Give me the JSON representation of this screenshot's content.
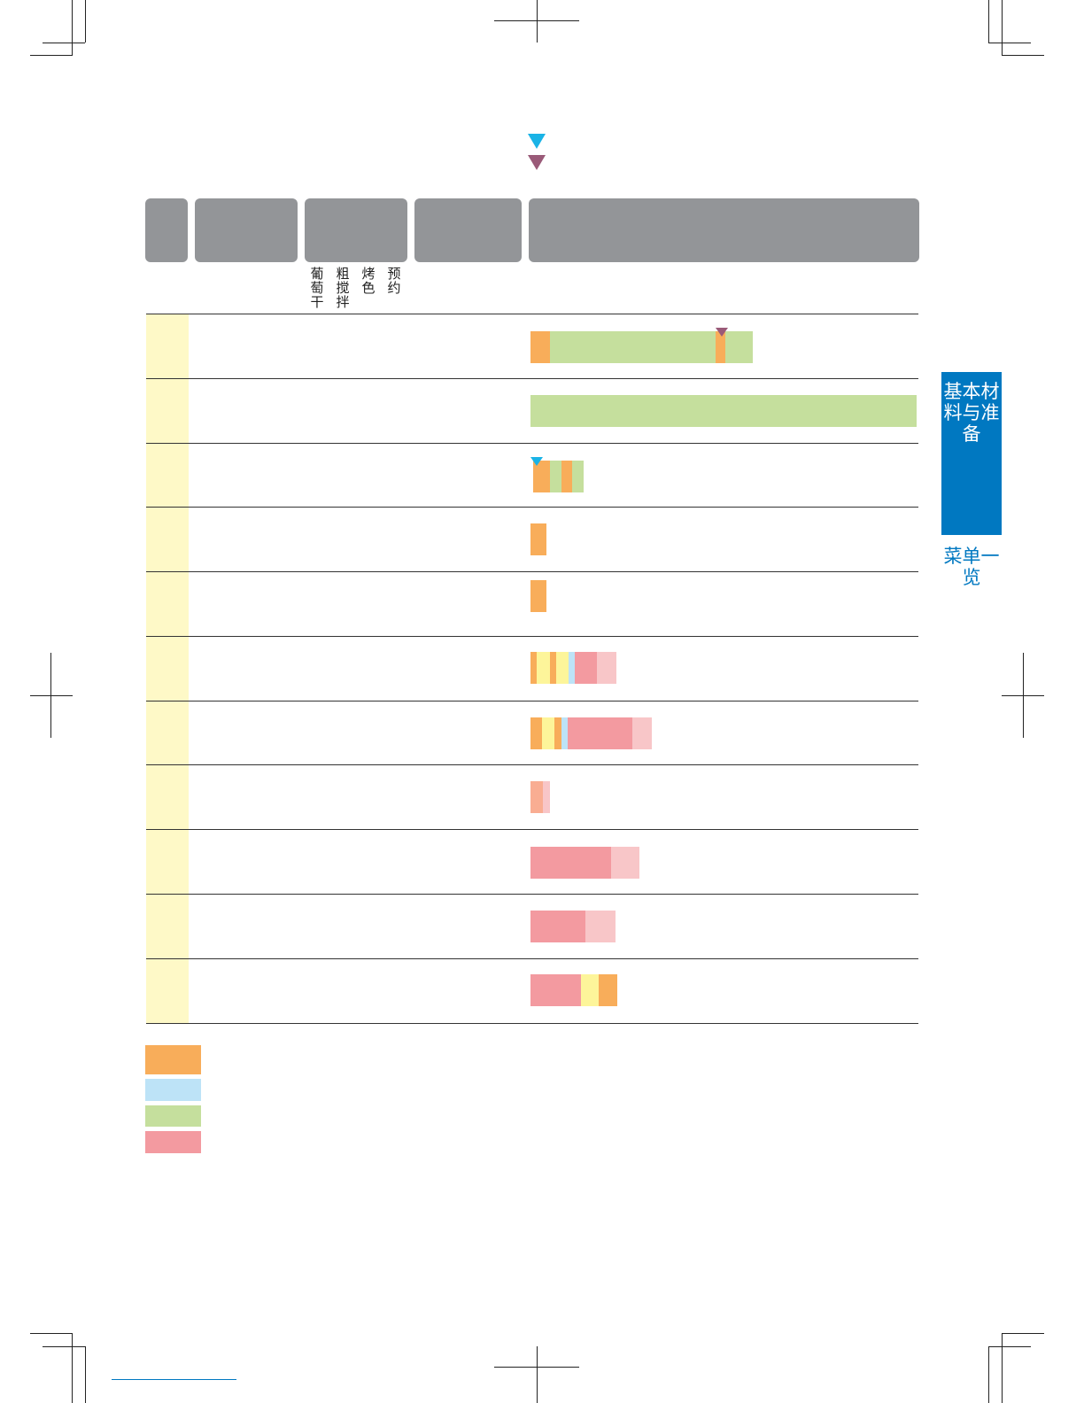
{
  "options_header": [
    "葡萄干",
    "粗搅拌",
    "烤色",
    "预约"
  ],
  "sidebar": {
    "section_title": "基本材料与准备",
    "subtitle": "菜单一览"
  },
  "colors": {
    "orange": "#F8AD5A",
    "light_blue": "#BDE3F7",
    "green": "#C5DF9D",
    "pink": "#F39AA0",
    "light_pink": "#F8C6C8",
    "yellow": "#FDF59A",
    "salmon": "#F9AD92",
    "header_gray": "#939598",
    "row_label_bg": "#FEF9C7",
    "sidebar_blue": "#0078C1",
    "marker_cyan": "#1AB3E6",
    "marker_purple": "#9A5A78"
  },
  "legend": [
    {
      "color": "orange"
    },
    {
      "color": "light_blue"
    },
    {
      "color": "green"
    },
    {
      "color": "pink"
    }
  ],
  "markers": [
    {
      "icon": "cyan-down-triangle-icon",
      "color": "marker_cyan"
    },
    {
      "icon": "purple-down-triangle-icon",
      "color": "marker_purple"
    }
  ]
}
